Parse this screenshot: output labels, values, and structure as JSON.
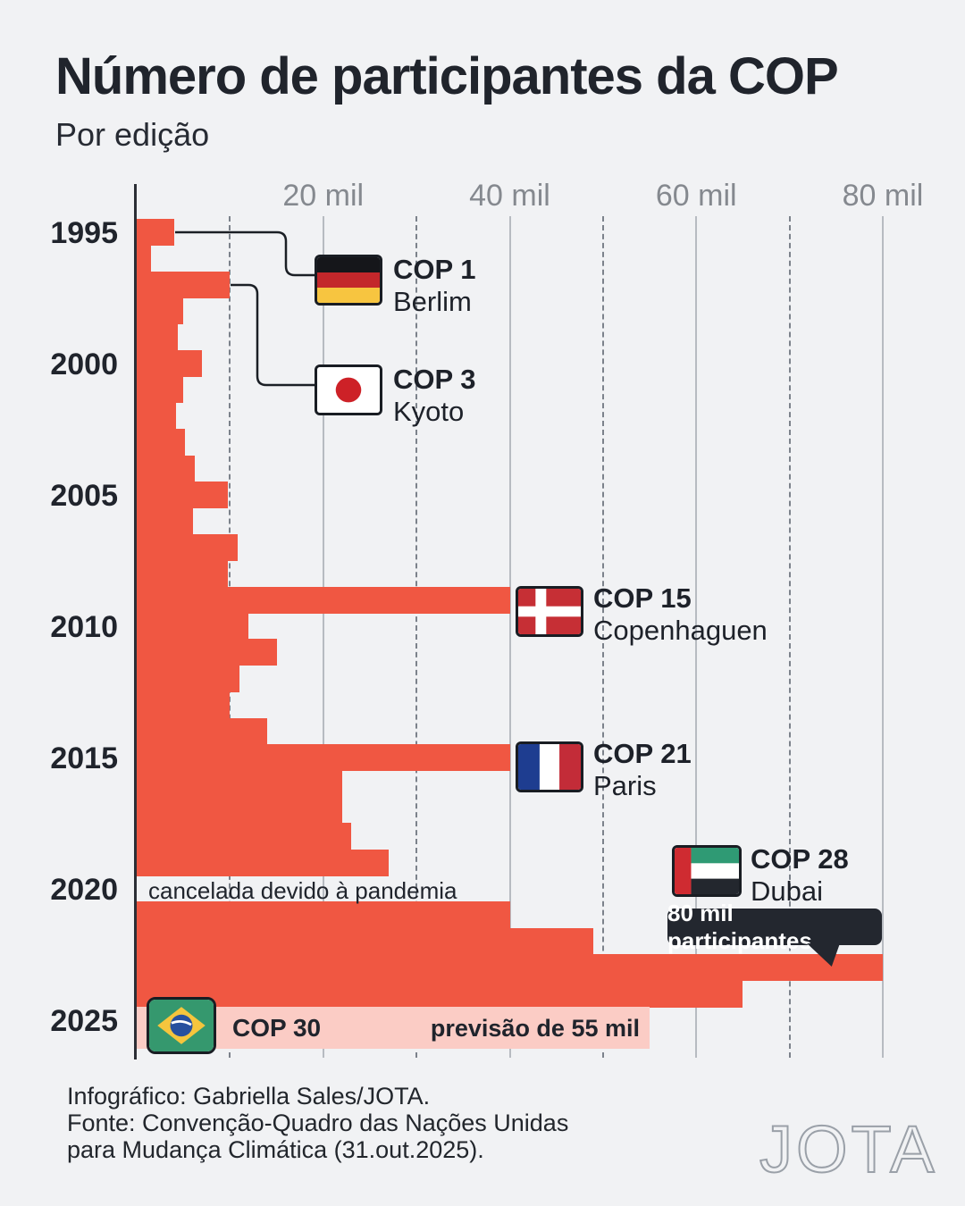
{
  "header": {
    "title": "Número de participantes da COP",
    "subtitle": "Por edição"
  },
  "chart_data": {
    "type": "bar",
    "orientation": "horizontal",
    "title": "Número de participantes da COP",
    "subtitle": "Por edição",
    "unit": "mil (thousands of participants)",
    "x_axis_labels_top": [
      "20 mil",
      "40 mil",
      "60 mil",
      "80 mil"
    ],
    "x_gridlines_solid_mil": [
      20,
      40,
      60,
      80
    ],
    "x_gridlines_dashed_mil": [
      10,
      30,
      50,
      70
    ],
    "xlim_mil": [
      0,
      84
    ],
    "y_axis_tick_years": [
      "1995",
      "2000",
      "2005",
      "2010",
      "2015",
      "2020",
      "2025"
    ],
    "years": [
      1995,
      1996,
      1997,
      1998,
      1999,
      2000,
      2001,
      2002,
      2003,
      2004,
      2005,
      2006,
      2007,
      2008,
      2009,
      2010,
      2011,
      2012,
      2013,
      2014,
      2015,
      2016,
      2017,
      2018,
      2019,
      2020,
      2021,
      2022,
      2023,
      2024,
      2025
    ],
    "values_mil": [
      4,
      1.5,
      10,
      5,
      4.4,
      7,
      5,
      4.2,
      5.2,
      6.2,
      9.8,
      6,
      10.8,
      9.8,
      40,
      12,
      15,
      11,
      10,
      14,
      40,
      22,
      22,
      23,
      27,
      null,
      40,
      49,
      80,
      65,
      55
    ],
    "special_years": {
      "2020": "cancelada devido à pandemia (no bar)",
      "2023": "80 mil participantes (tooltip)",
      "2025": "previsão de 55 mil (pink forecast bar, COP 30)"
    },
    "legend_position": "none",
    "grid": "vertical lines, solid every 20 mil, dashed every 10 mil"
  },
  "callouts": {
    "cop1": {
      "label": "COP 1",
      "city": "Berlim",
      "flag": "germany-flag"
    },
    "cop3": {
      "label": "COP 3",
      "city": "Kyoto",
      "flag": "japan-flag"
    },
    "cop15": {
      "label": "COP 15",
      "city": "Copenhaguen",
      "flag": "denmark-flag"
    },
    "cop21": {
      "label": "COP 21",
      "city": "Paris",
      "flag": "france-flag"
    },
    "cop28": {
      "label": "COP 28",
      "city": "Dubai",
      "flag": "uae-flag"
    },
    "cop30": {
      "label": "COP 30",
      "forecast": "previsão de 55 mil",
      "flag": "brazil-flag"
    }
  },
  "notes": {
    "cancelled_2020": "cancelada devido à pandemia",
    "tooltip_2023": "80 mil participantes"
  },
  "footer": {
    "line1": "Infográfico: Gabriella Sales/JOTA.",
    "line2": "Fonte: Convenção-Quadro das Nações Unidas",
    "line3": "para Mudança Climática  (31.out.2025).",
    "logo": "JOTA"
  },
  "colors": {
    "background": "#f1f2f4",
    "bar": "#f05742",
    "forecast_bar": "#fbccc5",
    "text_dark": "#20242c",
    "axis": "#2b2e35",
    "grid_solid": "#b7bbc1",
    "grid_dashed": "#7c828b",
    "tick_label_gray": "#85898f",
    "tooltip_bg": "#23272f",
    "tooltip_text": "#ffffff",
    "logo_gray": "#9aa0a8"
  }
}
